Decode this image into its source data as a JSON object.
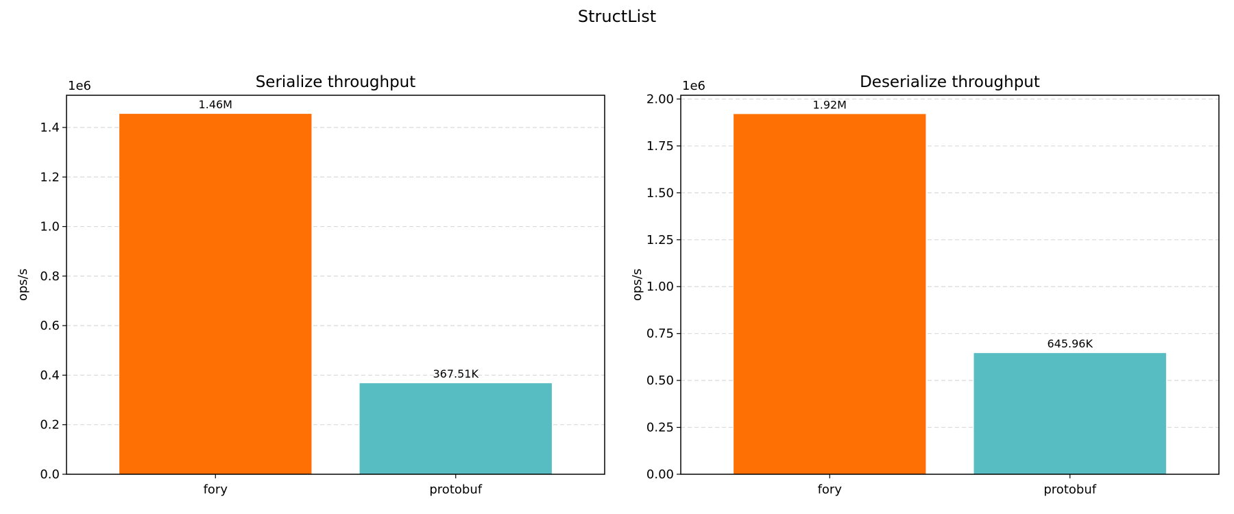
{
  "figure": {
    "title": "StructList"
  },
  "chart_data": [
    {
      "type": "bar",
      "title": "Serialize throughput",
      "xlabel": "",
      "ylabel": "ops/s",
      "offset_label": "1e6",
      "categories": [
        "fory",
        "protobuf"
      ],
      "values": [
        1455000,
        367510
      ],
      "data_labels": [
        "1.46M",
        "367.51K"
      ],
      "colors": [
        "#ff7004",
        "#57bdc2"
      ],
      "ylim": [
        0,
        1530000.0
      ],
      "yticks": [
        0,
        200000,
        400000,
        600000,
        800000,
        1000000,
        1200000,
        1400000
      ],
      "ytick_labels": [
        "0.0",
        "0.2",
        "0.4",
        "0.6",
        "0.8",
        "1.0",
        "1.2",
        "1.4"
      ],
      "grid": "y, dashed",
      "legend": "none"
    },
    {
      "type": "bar",
      "title": "Deserialize throughput",
      "xlabel": "",
      "ylabel": "ops/s",
      "offset_label": "1e6",
      "categories": [
        "fory",
        "protobuf"
      ],
      "values": [
        1920000,
        645960
      ],
      "data_labels": [
        "1.92M",
        "645.96K"
      ],
      "colors": [
        "#ff7004",
        "#57bdc2"
      ],
      "ylim": [
        0,
        2020000.0
      ],
      "yticks": [
        0,
        250000,
        500000,
        750000,
        1000000,
        1250000,
        1500000,
        1750000,
        2000000
      ],
      "ytick_labels": [
        "0.00",
        "0.25",
        "0.50",
        "0.75",
        "1.00",
        "1.25",
        "1.50",
        "1.75",
        "2.00"
      ],
      "grid": "y, dashed",
      "legend": "none"
    }
  ]
}
